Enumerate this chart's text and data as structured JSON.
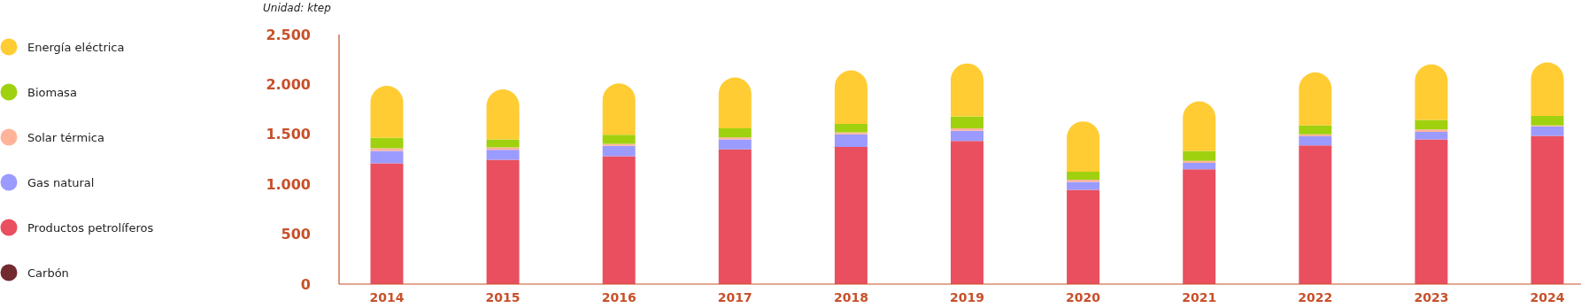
{
  "chart_data": {
    "type": "bar",
    "stacked": true,
    "ylabel": "Unidad: ktep",
    "categories": [
      "2014",
      "2015",
      "2016",
      "2017",
      "2018",
      "2019",
      "2020",
      "2021",
      "2022",
      "2023",
      "2024"
    ],
    "series": [
      {
        "name": "Carbón",
        "color": "#722a30",
        "values": [
          0,
          0,
          0,
          0,
          0,
          0,
          0,
          0,
          0,
          0,
          0
        ]
      },
      {
        "name": "Productos petrolíferos",
        "color": "#e94f5f",
        "values": [
          1210,
          1245,
          1280,
          1350,
          1375,
          1435,
          945,
          1150,
          1390,
          1450,
          1485
        ]
      },
      {
        "name": "Gas natural",
        "color": "#9b9bff",
        "values": [
          125,
          100,
          105,
          100,
          125,
          100,
          80,
          65,
          90,
          75,
          95
        ]
      },
      {
        "name": "Solar térmica",
        "color": "#ffb49a",
        "values": [
          25,
          25,
          20,
          20,
          20,
          25,
          20,
          20,
          20,
          25,
          10
        ]
      },
      {
        "name": "Biomasa",
        "color": "#9fd10f",
        "values": [
          105,
          80,
          90,
          90,
          85,
          120,
          80,
          100,
          90,
          95,
          95
        ]
      },
      {
        "name": "Energía eléctrica",
        "color": "#ffcc33",
        "values": [
          520,
          500,
          515,
          510,
          535,
          530,
          505,
          495,
          530,
          555,
          535
        ]
      }
    ],
    "ylim": [
      0,
      2500
    ],
    "yticks": [
      0,
      500,
      {
        "value": 1000,
        "label": "1.000"
      },
      {
        "value": 1500,
        "label": "1.500"
      },
      {
        "value": 2000,
        "label": "2.000"
      },
      {
        "value": 2500,
        "label": "2.500"
      }
    ],
    "legend": "left",
    "grid": false
  }
}
